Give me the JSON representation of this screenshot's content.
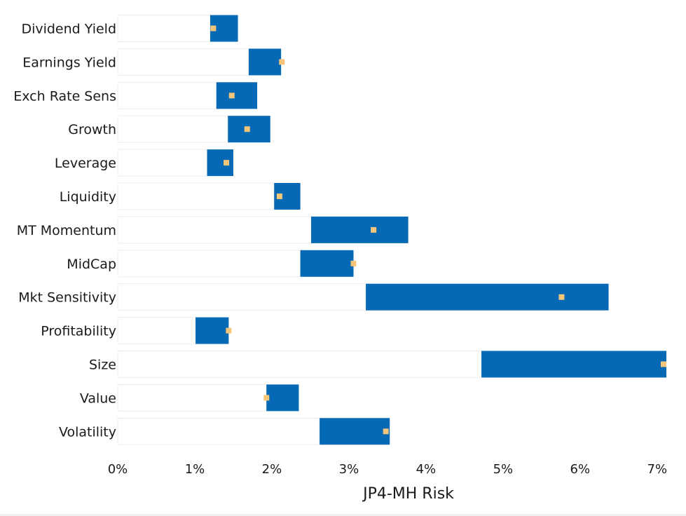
{
  "chart_data": {
    "type": "bar",
    "subtype": "floating-range-with-marker",
    "xlabel": "JP4-MH Risk",
    "xlim": [
      0,
      0.0712
    ],
    "x_ticks": [
      0,
      0.01,
      0.02,
      0.03,
      0.04,
      0.05,
      0.06,
      0.07
    ],
    "x_tick_labels": [
      "0%",
      "1%",
      "2%",
      "3%",
      "4%",
      "5%",
      "6%",
      "7%"
    ],
    "grid": false,
    "legend": "none",
    "colors": {
      "range": "#0569b5",
      "marker": "#f5c57a",
      "background_bar": "#ffffff",
      "background_bar_border": "#ececec"
    },
    "categories": [
      "Dividend Yield",
      "Earnings Yield",
      "Exch Rate Sens",
      "Growth",
      "Leverage",
      "Liquidity",
      "MT Momentum",
      "MidCap",
      "Mkt Sensitivity",
      "Profitability",
      "Size",
      "Value",
      "Volatility"
    ],
    "series": [
      {
        "values": [
          {
            "low": 0.012,
            "high": 0.0156,
            "marker": 0.0124
          },
          {
            "low": 0.017,
            "high": 0.0212,
            "marker": 0.0213
          },
          {
            "low": 0.0128,
            "high": 0.0181,
            "marker": 0.0148
          },
          {
            "low": 0.0143,
            "high": 0.0198,
            "marker": 0.0168
          },
          {
            "low": 0.0116,
            "high": 0.015,
            "marker": 0.0141
          },
          {
            "low": 0.0203,
            "high": 0.0237,
            "marker": 0.021
          },
          {
            "low": 0.0251,
            "high": 0.0377,
            "marker": 0.0332
          },
          {
            "low": 0.0237,
            "high": 0.0306,
            "marker": 0.0306
          },
          {
            "low": 0.0322,
            "high": 0.0637,
            "marker": 0.0576
          },
          {
            "low": 0.0101,
            "high": 0.0144,
            "marker": 0.0144
          },
          {
            "low": 0.0472,
            "high": 0.0712,
            "marker": 0.0712
          },
          {
            "low": 0.0193,
            "high": 0.0235,
            "marker": 0.0193
          },
          {
            "low": 0.0262,
            "high": 0.0353,
            "marker": 0.0348
          }
        ]
      }
    ]
  }
}
